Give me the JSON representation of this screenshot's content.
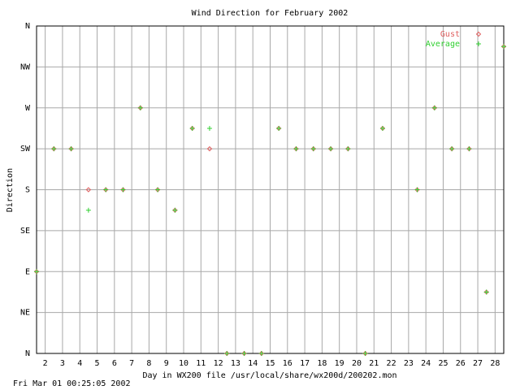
{
  "chart_data": {
    "type": "scatter",
    "title": "Wind Direction for February 2002",
    "xlabel": "Day in WX200 file /usr/local/share/wx200d/200202.mon",
    "ylabel": "Direction",
    "footer": "Fri Mar 01 00:25:05 2002",
    "xlim": [
      1.5,
      28.5
    ],
    "ylim": [
      0,
      360
    ],
    "xticks": [
      2,
      3,
      4,
      5,
      6,
      7,
      8,
      9,
      10,
      11,
      12,
      13,
      14,
      15,
      16,
      17,
      18,
      19,
      20,
      21,
      22,
      23,
      24,
      25,
      26,
      27,
      28
    ],
    "yticks": [
      {
        "value": 0,
        "label": "N"
      },
      {
        "value": 45,
        "label": "NE"
      },
      {
        "value": 90,
        "label": "E"
      },
      {
        "value": 135,
        "label": "SE"
      },
      {
        "value": 180,
        "label": "S"
      },
      {
        "value": 225,
        "label": "SW"
      },
      {
        "value": 270,
        "label": "W"
      },
      {
        "value": 315,
        "label": "NW"
      },
      {
        "value": 360,
        "label": "N"
      }
    ],
    "grid": true,
    "legend": "top-right",
    "x": [
      1.5,
      2.5,
      3.5,
      4.5,
      5.5,
      6.5,
      7.5,
      8.5,
      9.5,
      10.5,
      11.5,
      12.5,
      13.5,
      14.5,
      15.5,
      16.5,
      17.5,
      18.5,
      19.5,
      20.5,
      21.5,
      23.5,
      24.5,
      25.5,
      26.5,
      27.5,
      28.5
    ],
    "series": [
      {
        "name": "Gust",
        "color": "#e06060",
        "marker": "diamond",
        "values": [
          90,
          225,
          225,
          180,
          180,
          180,
          270,
          180,
          157.5,
          247.5,
          225,
          0,
          0,
          0,
          247.5,
          225,
          225,
          225,
          225,
          0,
          247.5,
          180,
          270,
          225,
          225,
          67.5,
          337.5
        ]
      },
      {
        "name": "Average",
        "color": "#30d030",
        "marker": "plus",
        "values": [
          90,
          225,
          225,
          157.5,
          180,
          180,
          270,
          180,
          157.5,
          247.5,
          247.5,
          0,
          0,
          0,
          247.5,
          225,
          225,
          225,
          225,
          0,
          247.5,
          180,
          270,
          225,
          225,
          67.5,
          337.5
        ]
      }
    ]
  }
}
